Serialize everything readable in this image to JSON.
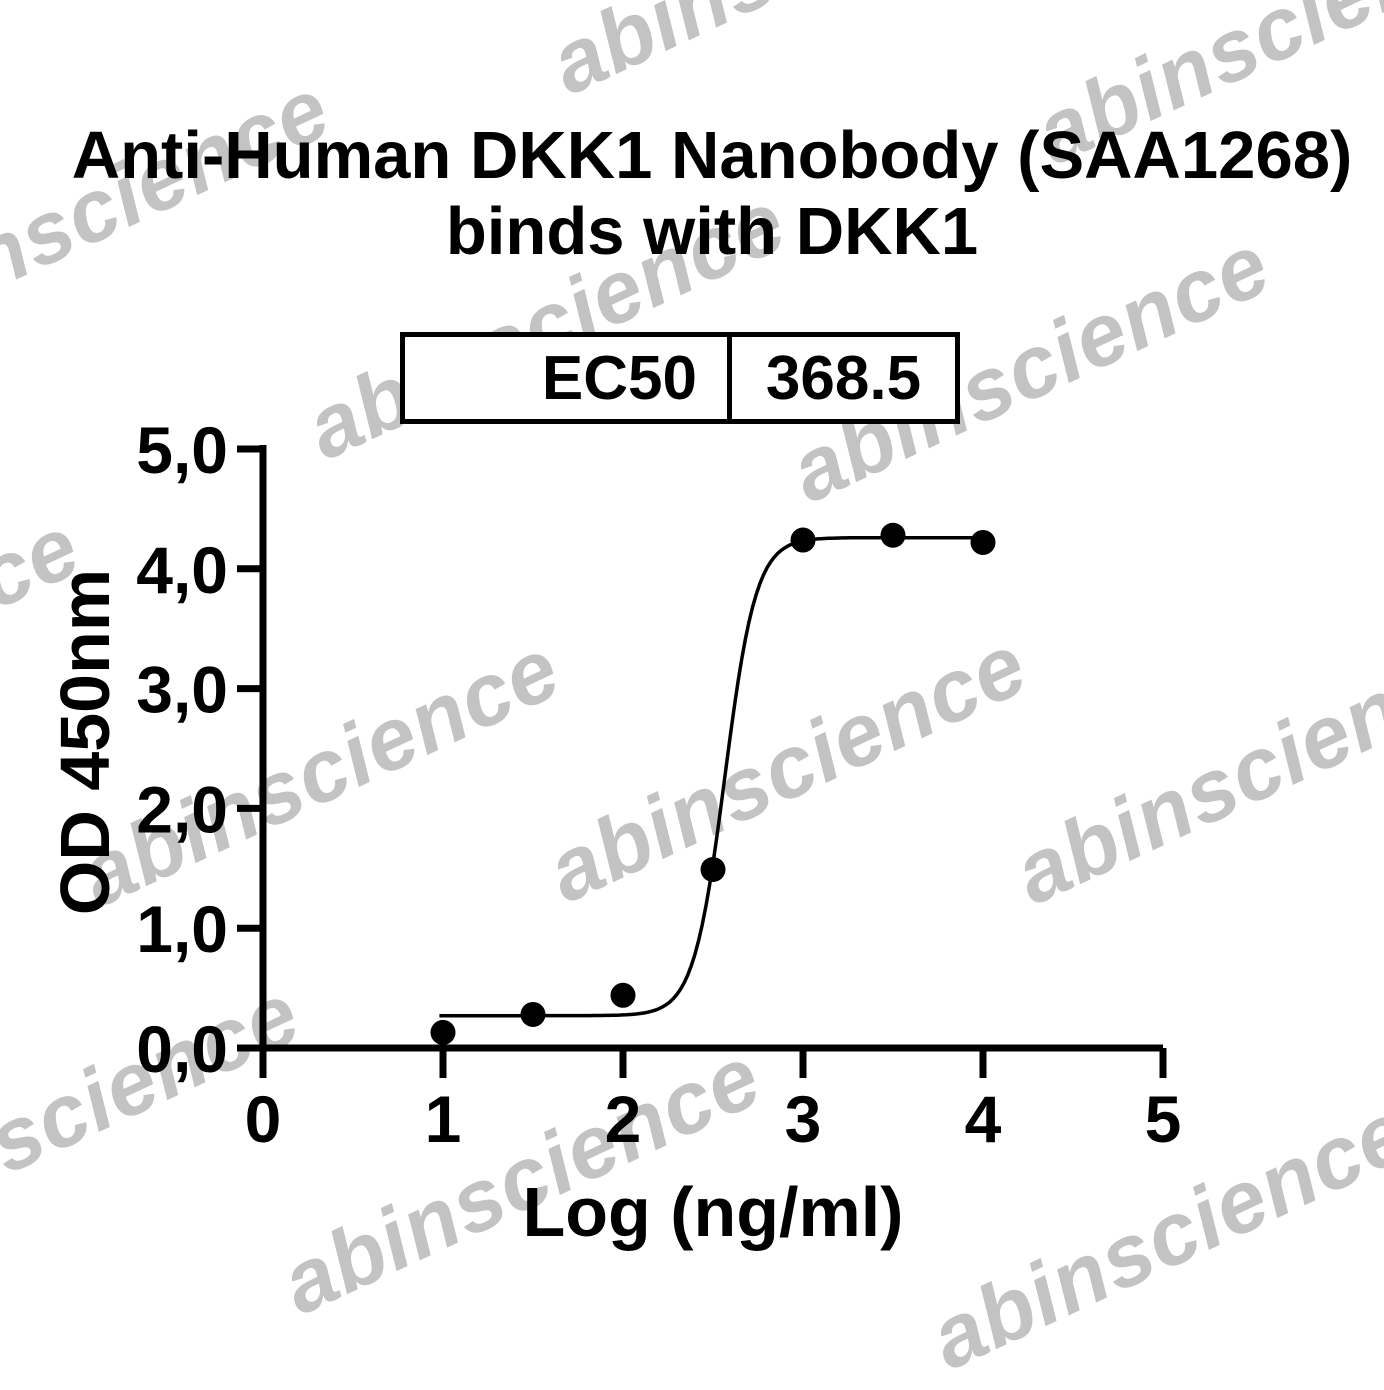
{
  "title": {
    "line1": "Anti-Human DKK1 Nanobody (SAA1268)",
    "line2": "binds with DKK1"
  },
  "ec50_table": {
    "label": "EC50",
    "value": "368.5"
  },
  "watermark": {
    "text": "abinscience",
    "color": "#b9b9b9"
  },
  "chart_data": {
    "type": "scatter",
    "title": "Anti-Human DKK1 Nanobody (SAA1268) binds with DKK1",
    "xlabel": "Log (ng/ml)",
    "ylabel": "OD 450nm",
    "xlim": [
      0,
      5
    ],
    "ylim": [
      0,
      5
    ],
    "grid": false,
    "x_ticks": {
      "values": [
        0,
        1,
        2,
        3,
        4,
        5
      ],
      "labels": [
        "0",
        "1",
        "2",
        "3",
        "4",
        "5"
      ]
    },
    "y_ticks": {
      "values": [
        0,
        1,
        2,
        3,
        4,
        5
      ],
      "labels": [
        "0,0",
        "1,0",
        "2,0",
        "3,0",
        "4,0",
        "5,0"
      ]
    },
    "points": {
      "x": [
        1.0,
        1.5,
        2.0,
        2.5,
        3.0,
        3.5,
        4.0
      ],
      "y": [
        0.13,
        0.28,
        0.44,
        1.49,
        4.24,
        4.28,
        4.22
      ]
    },
    "fit_curve": {
      "model": "4PL",
      "bottom": 0.27,
      "top": 4.26,
      "log_ec50": 2.566,
      "hill_slope": 5,
      "x_start": 0.98,
      "x_end": 4.0
    },
    "ec50": 368.5,
    "marker_color": "#000000",
    "line_color": "#000000",
    "axis_color": "#000000"
  }
}
